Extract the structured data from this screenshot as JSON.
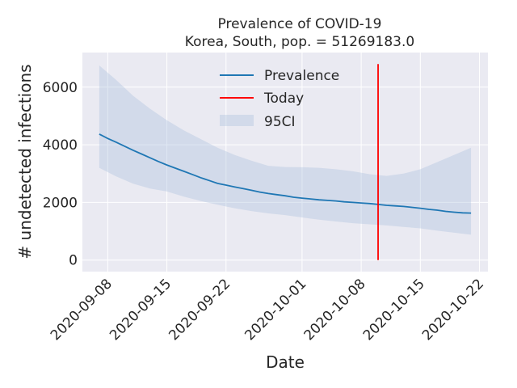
{
  "chart_data": {
    "type": "line",
    "title": "Prevalence of COVID-19",
    "subtitle": "Korea, South, pop. = 51269183.0",
    "xlabel": "Date",
    "ylabel": "# undetected infections",
    "xlim": [
      "2020-09-05",
      "2020-10-23"
    ],
    "ylim": [
      -400,
      7200
    ],
    "x_ticks": [
      "2020-09-08",
      "2020-09-15",
      "2020-09-22",
      "2020-10-01",
      "2020-10-08",
      "2020-10-15",
      "2020-10-22"
    ],
    "y_ticks": [
      0,
      2000,
      4000,
      6000
    ],
    "y_tick_labels": [
      "0",
      "2000",
      "4000",
      "6000"
    ],
    "grid": true,
    "legend": {
      "position": "top-center",
      "entries": [
        "Prevalence",
        "Today",
        "95CI"
      ]
    },
    "colors": {
      "prevalence": "#1f77b4",
      "today": "#ff0000",
      "ci": "#b0c4de",
      "background": "#eaeaf2",
      "grid": "#ffffff"
    },
    "series": [
      {
        "name": "Prevalence",
        "x": [
          "2020-09-07",
          "2020-09-08",
          "2020-09-09",
          "2020-09-10",
          "2020-09-11",
          "2020-09-12",
          "2020-09-13",
          "2020-09-14",
          "2020-09-15",
          "2020-09-16",
          "2020-09-17",
          "2020-09-18",
          "2020-09-19",
          "2020-09-20",
          "2020-09-21",
          "2020-09-22",
          "2020-09-23",
          "2020-09-24",
          "2020-09-25",
          "2020-09-26",
          "2020-09-27",
          "2020-09-28",
          "2020-09-29",
          "2020-09-30",
          "2020-10-01",
          "2020-10-02",
          "2020-10-03",
          "2020-10-04",
          "2020-10-05",
          "2020-10-06",
          "2020-10-07",
          "2020-10-08",
          "2020-10-09",
          "2020-10-10",
          "2020-10-11",
          "2020-10-12",
          "2020-10-13",
          "2020-10-14",
          "2020-10-15",
          "2020-10-16",
          "2020-10-17",
          "2020-10-18",
          "2020-10-19",
          "2020-10-20",
          "2020-10-21"
        ],
        "y": [
          4370,
          4220,
          4090,
          3950,
          3810,
          3680,
          3550,
          3420,
          3300,
          3190,
          3080,
          2970,
          2860,
          2760,
          2660,
          2600,
          2540,
          2480,
          2420,
          2360,
          2310,
          2270,
          2230,
          2180,
          2150,
          2120,
          2090,
          2070,
          2050,
          2020,
          2000,
          1980,
          1960,
          1930,
          1900,
          1880,
          1860,
          1830,
          1800,
          1760,
          1730,
          1690,
          1660,
          1640,
          1630
        ]
      },
      {
        "name": "95CI",
        "x": [
          "2020-09-07",
          "2020-09-09",
          "2020-09-11",
          "2020-09-13",
          "2020-09-15",
          "2020-09-17",
          "2020-09-19",
          "2020-09-21",
          "2020-09-23",
          "2020-09-25",
          "2020-09-27",
          "2020-09-29",
          "2020-10-01",
          "2020-10-03",
          "2020-10-05",
          "2020-10-07",
          "2020-10-09",
          "2020-10-11",
          "2020-10-13",
          "2020-10-15",
          "2020-10-17",
          "2020-10-19",
          "2020-10-21"
        ],
        "upper": [
          6750,
          6250,
          5700,
          5250,
          4850,
          4500,
          4200,
          3900,
          3650,
          3450,
          3270,
          3230,
          3220,
          3200,
          3150,
          3080,
          2980,
          2920,
          3000,
          3150,
          3400,
          3650,
          3900
        ],
        "lower": [
          3200,
          2900,
          2650,
          2480,
          2380,
          2200,
          2050,
          1920,
          1800,
          1700,
          1620,
          1560,
          1480,
          1400,
          1340,
          1280,
          1240,
          1200,
          1150,
          1100,
          1020,
          950,
          880
        ]
      },
      {
        "name": "Today",
        "x": [
          "2020-10-10",
          "2020-10-10"
        ],
        "y": [
          0,
          6800
        ]
      }
    ]
  }
}
